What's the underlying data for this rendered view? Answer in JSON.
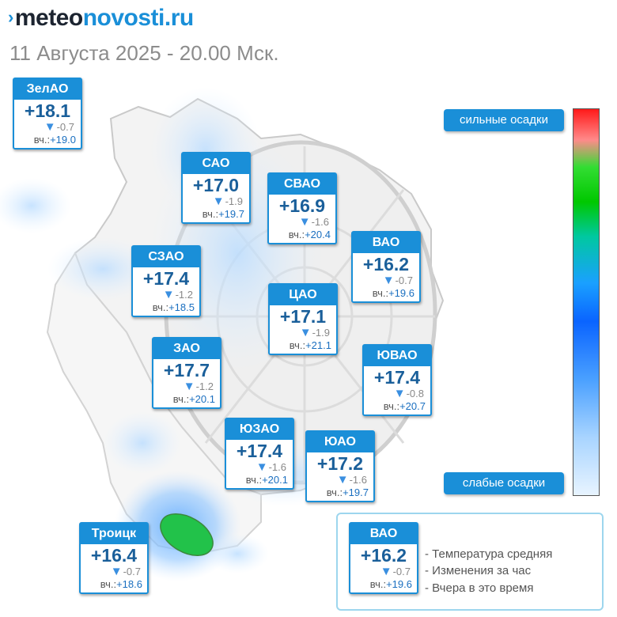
{
  "header": {
    "logo_mark": "›",
    "logo_part1": "meteo",
    "logo_part2": "novosti.ru",
    "subtitle": "11 Августа 2025 - 20.00 Мск."
  },
  "districts": [
    {
      "id": "zelao",
      "name": "ЗелАО",
      "temp": "+18.1",
      "change": "-0.7",
      "yesterday_label": "вч.:",
      "yesterday": "+19.0"
    },
    {
      "id": "sao",
      "name": "САО",
      "temp": "+17.0",
      "change": "-1.9",
      "yesterday_label": "вч.:",
      "yesterday": "+19.7"
    },
    {
      "id": "svao",
      "name": "СВАО",
      "temp": "+16.9",
      "change": "-1.6",
      "yesterday_label": "вч.:",
      "yesterday": "+20.4"
    },
    {
      "id": "vao",
      "name": "ВАО",
      "temp": "+16.2",
      "change": "-0.7",
      "yesterday_label": "вч.:",
      "yesterday": "+19.6"
    },
    {
      "id": "szao",
      "name": "СЗАО",
      "temp": "+17.4",
      "change": "-1.2",
      "yesterday_label": "вч.:",
      "yesterday": "+18.5"
    },
    {
      "id": "cao",
      "name": "ЦАО",
      "temp": "+17.1",
      "change": "-1.9",
      "yesterday_label": "вч.:",
      "yesterday": "+21.1"
    },
    {
      "id": "zao",
      "name": "ЗАО",
      "temp": "+17.7",
      "change": "-1.2",
      "yesterday_label": "вч.:",
      "yesterday": "+20.1"
    },
    {
      "id": "yuvao",
      "name": "ЮВАО",
      "temp": "+17.4",
      "change": "-0.8",
      "yesterday_label": "вч.:",
      "yesterday": "+20.7"
    },
    {
      "id": "yuzao",
      "name": "ЮЗАО",
      "temp": "+17.4",
      "change": "-1.6",
      "yesterday_label": "вч.:",
      "yesterday": "+20.1"
    },
    {
      "id": "yuao",
      "name": "ЮАО",
      "temp": "+17.2",
      "change": "-1.6",
      "yesterday_label": "вч.:",
      "yesterday": "+19.7"
    },
    {
      "id": "troitsk",
      "name": "Троицк",
      "temp": "+16.4",
      "change": "-0.7",
      "yesterday_label": "вч.:",
      "yesterday": "+18.6"
    }
  ],
  "precip_scale": {
    "top_label": "сильные осадки",
    "bottom_label": "слабые осадки"
  },
  "legend": {
    "sample": {
      "name": "ВАО",
      "temp": "+16.2",
      "change": "-0.7",
      "yesterday_label": "вч.:",
      "yesterday": "+19.6"
    },
    "line1": "- Температура средняя",
    "line2": "- Изменения за час",
    "line3": "- Вчера в это время"
  },
  "icons": {
    "change_arrow": "down-triangle-icon"
  },
  "colors": {
    "accent": "#1a8fd8",
    "temp_text": "#1a5f9a",
    "scale_top": "#ff1a1a",
    "scale_mid": "#00c800",
    "scale_low": "#0a64ff"
  }
}
